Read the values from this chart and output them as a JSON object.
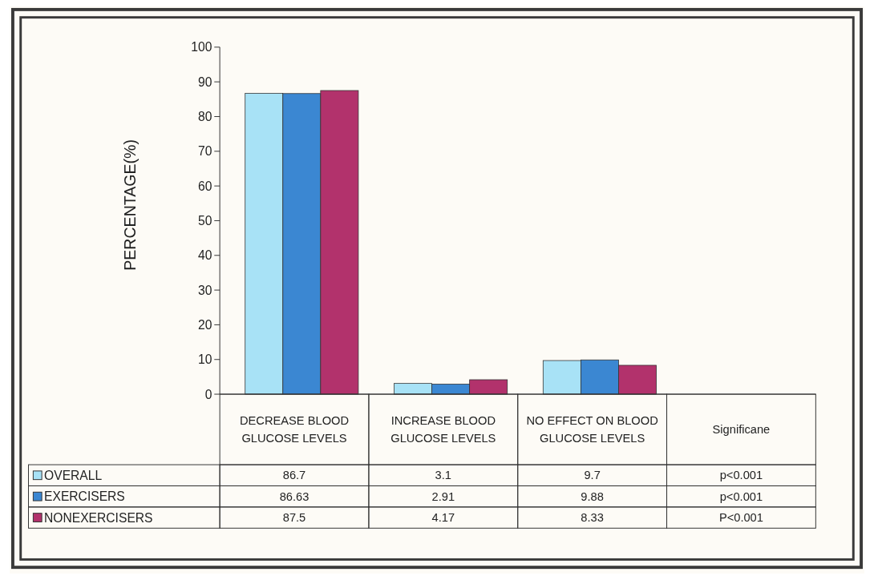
{
  "chart_data": {
    "type": "bar",
    "ylabel": "PERCENTAGE(%)",
    "categories": [
      "DECREASE BLOOD GLUCOSE LEVELS",
      "INCREASE BLOOD GLUCOSE LEVELS",
      "NO EFFECT ON BLOOD GLUCOSE LEVELS",
      "Significane"
    ],
    "series": [
      {
        "name": "OVERALL",
        "color": "#a8e2f6",
        "values": [
          86.7,
          3.1,
          9.7,
          null
        ],
        "value_labels": [
          "86.7",
          "3.1",
          "9.7",
          "p<0.001"
        ]
      },
      {
        "name": "EXERCISERS",
        "color": "#3b87d2",
        "values": [
          86.63,
          2.91,
          9.88,
          null
        ],
        "value_labels": [
          "86.63",
          "2.91",
          "9.88",
          "p<0.001"
        ]
      },
      {
        "name": "NONEXERCISERS",
        "color": "#b2326c",
        "values": [
          87.5,
          4.17,
          8.33,
          null
        ],
        "value_labels": [
          "87.5",
          "4.17",
          "8.33",
          "P<0.001"
        ]
      }
    ],
    "ylim": [
      0,
      100
    ],
    "yticks": [
      0,
      10,
      20,
      30,
      40,
      50,
      60,
      70,
      80,
      90,
      100
    ],
    "legend": "bottom left"
  }
}
